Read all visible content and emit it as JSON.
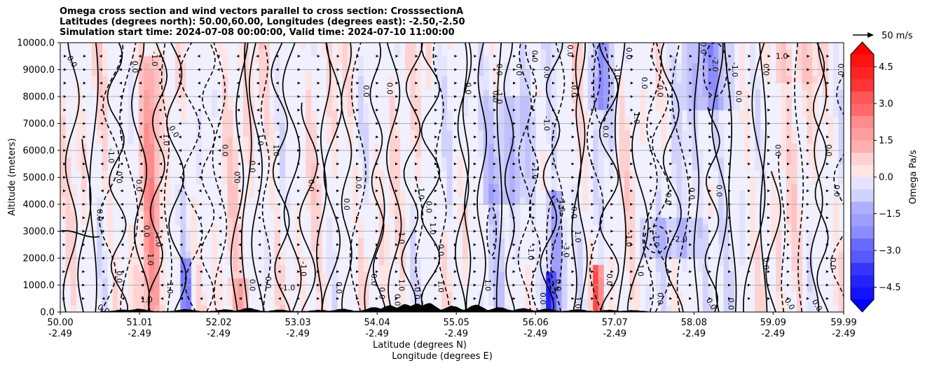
{
  "chart_data": {
    "type": "heatmap",
    "title_lines": [
      "Omega cross section and wind vectors parallel to cross section: CrosssectionA",
      "Latitudes (degrees north): 50.00,60.00, Longitudes (degrees east): -2.50,-2.50",
      "Simulation start time: 2024-07-08 00:00:00, Valid time: 2024-07-10 11:00:00"
    ],
    "ylabel": "Altitude (meters)",
    "xlabel_lat": "Latitude (degrees N)",
    "xlabel_lon": "Longitude (degrees E)",
    "ylim": [
      0,
      10000
    ],
    "xlim": [
      50.0,
      59.99
    ],
    "yticks": [
      {
        "v": 0,
        "label": "0.0"
      },
      {
        "v": 1000,
        "label": "1000.0"
      },
      {
        "v": 2000,
        "label": "2000.0"
      },
      {
        "v": 3000,
        "label": "3000.0"
      },
      {
        "v": 4000,
        "label": "4000.0"
      },
      {
        "v": 5000,
        "label": "5000.0"
      },
      {
        "v": 6000,
        "label": "6000.0"
      },
      {
        "v": 7000,
        "label": "7000.0"
      },
      {
        "v": 8000,
        "label": "8000.0"
      },
      {
        "v": 9000,
        "label": "9000.0"
      },
      {
        "v": 10000,
        "label": "10000.0"
      }
    ],
    "xticks": [
      {
        "v": 50.0,
        "lat": "50.00",
        "lon": "-2.49"
      },
      {
        "v": 51.01,
        "lat": "51.01",
        "lon": "-2.49"
      },
      {
        "v": 52.02,
        "lat": "52.02",
        "lon": "-2.49"
      },
      {
        "v": 53.03,
        "lat": "53.03",
        "lon": "-2.49"
      },
      {
        "v": 54.04,
        "lat": "54.04",
        "lon": "-2.49"
      },
      {
        "v": 55.05,
        "lat": "55.05",
        "lon": "-2.49"
      },
      {
        "v": 56.06,
        "lat": "56.06",
        "lon": "-2.49"
      },
      {
        "v": 57.07,
        "lat": "57.07",
        "lon": "-2.49"
      },
      {
        "v": 58.08,
        "lat": "58.08",
        "lon": "-2.49"
      },
      {
        "v": 59.09,
        "lat": "59.09",
        "lon": "-2.49"
      },
      {
        "v": 59.99,
        "lat": "59.99",
        "lon": "-2.49"
      }
    ],
    "colorbar": {
      "label": "Omega Pa/s",
      "range": [
        -5,
        5
      ],
      "ticks": [
        {
          "v": 4.5,
          "label": "4.5"
        },
        {
          "v": 3.0,
          "label": "3.0"
        },
        {
          "v": 1.5,
          "label": "1.5"
        },
        {
          "v": 0.0,
          "label": "0.0"
        },
        {
          "v": -1.5,
          "label": "−1.5"
        },
        {
          "v": -3.0,
          "label": "−3.0"
        },
        {
          "v": -4.5,
          "label": "−4.5"
        }
      ]
    },
    "quiver_key": {
      "label": "50 m/s"
    },
    "contour_labels": [
      {
        "lat": 50.15,
        "alt": 9300,
        "text": "0.0",
        "rot": 60
      },
      {
        "lat": 50.65,
        "alt": 5800,
        "text": "-1.0",
        "rot": 90
      },
      {
        "lat": 50.75,
        "alt": 5000,
        "text": "0.0",
        "rot": 90
      },
      {
        "lat": 50.95,
        "alt": 9100,
        "text": "0.0",
        "rot": 90
      },
      {
        "lat": 51.2,
        "alt": 9400,
        "text": "-1.0",
        "rot": 90
      },
      {
        "lat": 51.35,
        "alt": 6400,
        "text": "1.0",
        "rot": 90
      },
      {
        "lat": 51.45,
        "alt": 6700,
        "text": "0.0",
        "rot": 60
      },
      {
        "lat": 51.0,
        "alt": 4700,
        "text": "0.0",
        "rot": 90
      },
      {
        "lat": 50.5,
        "alt": 3600,
        "text": "0.0",
        "rot": 90
      },
      {
        "lat": 51.1,
        "alt": 3000,
        "text": "0.0",
        "rot": 90
      },
      {
        "lat": 51.25,
        "alt": 2700,
        "text": "-1.0",
        "rot": 90
      },
      {
        "lat": 51.15,
        "alt": 1950,
        "text": "1.0",
        "rot": 90
      },
      {
        "lat": 50.75,
        "alt": 1300,
        "text": "0.0",
        "rot": 90
      },
      {
        "lat": 51.1,
        "alt": 450,
        "text": "1.0",
        "rot": 0
      },
      {
        "lat": 51.4,
        "alt": 900,
        "text": "1.0",
        "rot": 90
      },
      {
        "lat": 50.55,
        "alt": 100,
        "text": "0.0",
        "rot": 30
      },
      {
        "lat": 52.1,
        "alt": 6000,
        "text": "0.0",
        "rot": 90
      },
      {
        "lat": 52.25,
        "alt": 5000,
        "text": "0.0",
        "rot": 90
      },
      {
        "lat": 52.45,
        "alt": 5400,
        "text": "0.0",
        "rot": 90
      },
      {
        "lat": 52.55,
        "alt": 6400,
        "text": "1.0",
        "rot": 90
      },
      {
        "lat": 52.75,
        "alt": 6000,
        "text": "1.0",
        "rot": 90
      },
      {
        "lat": 52.65,
        "alt": 1100,
        "text": "0.0",
        "rot": 90
      },
      {
        "lat": 53.1,
        "alt": 1600,
        "text": "-1.0",
        "rot": 90
      },
      {
        "lat": 52.45,
        "alt": 1000,
        "text": "0.0",
        "rot": 90
      },
      {
        "lat": 52.9,
        "alt": 900,
        "text": "-1.0",
        "rot": 0
      },
      {
        "lat": 53.2,
        "alt": 4700,
        "text": "0.0",
        "rot": 90
      },
      {
        "lat": 53.65,
        "alt": 4000,
        "text": "0.0",
        "rot": 90
      },
      {
        "lat": 53.9,
        "alt": 8200,
        "text": "0.0",
        "rot": 90
      },
      {
        "lat": 53.8,
        "alt": 4800,
        "text": "0.0",
        "rot": 90
      },
      {
        "lat": 54.2,
        "alt": 8300,
        "text": "0.0",
        "rot": 90
      },
      {
        "lat": 54.6,
        "alt": 4400,
        "text": "1.0",
        "rot": 90
      },
      {
        "lat": 54.7,
        "alt": 3900,
        "text": "0.0",
        "rot": 90
      },
      {
        "lat": 54.35,
        "alt": 2800,
        "text": "-1.0",
        "rot": 90
      },
      {
        "lat": 54.75,
        "alt": 3100,
        "text": "1.0",
        "rot": 90
      },
      {
        "lat": 54.85,
        "alt": 2300,
        "text": "0.0",
        "rot": 90
      },
      {
        "lat": 53.55,
        "alt": 900,
        "text": "0.0",
        "rot": 90
      },
      {
        "lat": 54.0,
        "alt": 1200,
        "text": "0.0",
        "rot": 90
      },
      {
        "lat": 54.1,
        "alt": 700,
        "text": "0.0",
        "rot": 90
      },
      {
        "lat": 54.3,
        "alt": 450,
        "text": "0.0",
        "rot": 90
      },
      {
        "lat": 54.35,
        "alt": 1000,
        "text": "1.0",
        "rot": 90
      },
      {
        "lat": 54.55,
        "alt": 700,
        "text": "0.0",
        "rot": 90
      },
      {
        "lat": 54.85,
        "alt": 950,
        "text": "1.0",
        "rot": 90
      },
      {
        "lat": 55.45,
        "alt": 1000,
        "text": "1.0",
        "rot": 90
      },
      {
        "lat": 55.2,
        "alt": 8300,
        "text": "0.0",
        "rot": 90
      },
      {
        "lat": 55.55,
        "alt": 8000,
        "text": "0.0",
        "rot": 90
      },
      {
        "lat": 55.6,
        "alt": 9000,
        "text": "0.0",
        "rot": 90
      },
      {
        "lat": 55.6,
        "alt": 8000,
        "text": "-1.0",
        "rot": 90
      },
      {
        "lat": 55.85,
        "alt": 9000,
        "text": "0.0",
        "rot": 90
      },
      {
        "lat": 56.05,
        "alt": 9500,
        "text": "0.0",
        "rot": 90
      },
      {
        "lat": 56.2,
        "alt": 7000,
        "text": "-1.0",
        "rot": 90
      },
      {
        "lat": 56.2,
        "alt": 8900,
        "text": "0.0",
        "rot": 90
      },
      {
        "lat": 56.5,
        "alt": 9700,
        "text": "0.0",
        "rot": 90
      },
      {
        "lat": 56.55,
        "alt": 8200,
        "text": "0.0",
        "rot": 90
      },
      {
        "lat": 56.05,
        "alt": 5200,
        "text": "-1.0",
        "rot": 90
      },
      {
        "lat": 56.4,
        "alt": 4000,
        "text": "-1.0",
        "rot": 90
      },
      {
        "lat": 56.55,
        "alt": 3700,
        "text": "0.0",
        "rot": 90
      },
      {
        "lat": 56.0,
        "alt": 2200,
        "text": "-1.0",
        "rot": 90
      },
      {
        "lat": 56.45,
        "alt": 2300,
        "text": "-3.0",
        "rot": 90
      },
      {
        "lat": 56.6,
        "alt": 2800,
        "text": "1.0",
        "rot": 90
      },
      {
        "lat": 56.35,
        "alt": 1000,
        "text": "0.0",
        "rot": 90
      },
      {
        "lat": 56.6,
        "alt": 350,
        "text": "1.0",
        "rot": 90
      },
      {
        "lat": 56.15,
        "alt": 500,
        "text": "0.0",
        "rot": 90
      },
      {
        "lat": 57.0,
        "alt": 1200,
        "text": "0.0",
        "rot": 90
      },
      {
        "lat": 57.1,
        "alt": 8900,
        "text": "-1.0",
        "rot": 90
      },
      {
        "lat": 57.25,
        "alt": 9600,
        "text": "0.0",
        "rot": 90
      },
      {
        "lat": 56.95,
        "alt": 6700,
        "text": "0.0",
        "rot": 90
      },
      {
        "lat": 57.35,
        "alt": 7200,
        "text": "1.0",
        "rot": 90
      },
      {
        "lat": 57.45,
        "alt": 8500,
        "text": "0.0",
        "rot": 90
      },
      {
        "lat": 57.65,
        "alt": 8200,
        "text": "0.0",
        "rot": 90
      },
      {
        "lat": 57.25,
        "alt": 2700,
        "text": "-1.0",
        "rot": 90
      },
      {
        "lat": 57.6,
        "alt": 2700,
        "text": "-1.0",
        "rot": 90
      },
      {
        "lat": 57.9,
        "alt": 2700,
        "text": "-2.0",
        "rot": 0
      },
      {
        "lat": 57.75,
        "alt": 4200,
        "text": "0.0",
        "rot": 90
      },
      {
        "lat": 58.05,
        "alt": 4400,
        "text": "0.0",
        "rot": 90
      },
      {
        "lat": 57.4,
        "alt": 1600,
        "text": "-1.0",
        "rot": 90
      },
      {
        "lat": 57.65,
        "alt": 500,
        "text": "0.0",
        "rot": 90
      },
      {
        "lat": 58.4,
        "alt": 4500,
        "text": "0.0",
        "rot": 90
      },
      {
        "lat": 58.35,
        "alt": 9200,
        "text": "-2.0",
        "rot": 90
      },
      {
        "lat": 58.6,
        "alt": 9000,
        "text": "-1.0",
        "rot": 90
      },
      {
        "lat": 58.2,
        "alt": 9800,
        "text": "0.0",
        "rot": 90
      },
      {
        "lat": 58.65,
        "alt": 8000,
        "text": "0.0",
        "rot": 90
      },
      {
        "lat": 59.0,
        "alt": 9000,
        "text": "0.0",
        "rot": 90
      },
      {
        "lat": 59.2,
        "alt": 9500,
        "text": "1.0",
        "rot": 0
      },
      {
        "lat": 59.15,
        "alt": 6000,
        "text": "0.0",
        "rot": 90
      },
      {
        "lat": 59.0,
        "alt": 1800,
        "text": "0.0",
        "rot": 90
      },
      {
        "lat": 59.8,
        "alt": 6000,
        "text": "0.0",
        "rot": 90
      },
      {
        "lat": 59.95,
        "alt": 9000,
        "text": "0.0",
        "rot": 90
      },
      {
        "lat": 59.9,
        "alt": 4500,
        "text": "0.0",
        "rot": 90
      },
      {
        "lat": 59.85,
        "alt": 1800,
        "text": "0.0",
        "rot": 90
      },
      {
        "lat": 58.3,
        "alt": 300,
        "text": "0.0",
        "rot": 60
      },
      {
        "lat": 58.55,
        "alt": 300,
        "text": "0.0",
        "rot": 90
      },
      {
        "lat": 59.3,
        "alt": 300,
        "text": "0.0",
        "rot": 60
      },
      {
        "lat": 59.65,
        "alt": 250,
        "text": "0.0",
        "rot": 60
      }
    ]
  }
}
